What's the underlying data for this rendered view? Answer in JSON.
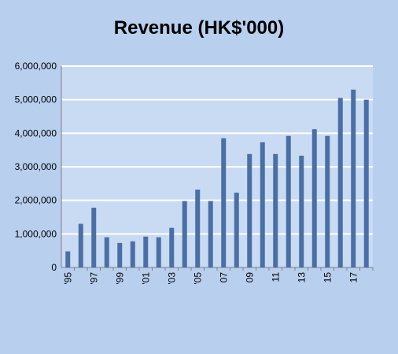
{
  "chart_data": {
    "type": "bar",
    "title": "Revenue (HK$'000)",
    "xlabel": "",
    "ylabel": "",
    "ylim": [
      0,
      6000000
    ],
    "yticks": [
      0,
      1000000,
      2000000,
      3000000,
      4000000,
      5000000,
      6000000
    ],
    "ytick_labels": [
      "0",
      "1,000,000",
      "2,000,000",
      "3,000,000",
      "4,000,000",
      "5,000,000",
      "6,000,000"
    ],
    "categories": [
      "1995",
      "1996",
      "1997",
      "1998",
      "1999",
      "2000",
      "2001",
      "2002",
      "2003",
      "2004",
      "2005",
      "2006",
      "2007",
      "2008",
      "2009",
      "2010",
      "2011",
      "2012",
      "2013",
      "2014",
      "2015",
      "2016",
      "2017",
      "2018"
    ],
    "xtick_labels": [
      "'95",
      "",
      "'97",
      "",
      "'99",
      "",
      "'01",
      "",
      "'03",
      "",
      "'05",
      "",
      "07",
      "",
      "09",
      "",
      "11",
      "",
      "13",
      "",
      "15",
      "",
      "17",
      ""
    ],
    "values": [
      480000,
      1300000,
      1780000,
      900000,
      730000,
      780000,
      920000,
      900000,
      1180000,
      1980000,
      2320000,
      1980000,
      3850000,
      2230000,
      3380000,
      3730000,
      3380000,
      3920000,
      3330000,
      4120000,
      3920000,
      5050000,
      5300000,
      5000000
    ],
    "grid": true,
    "colors": {
      "background": "#b8cfee",
      "plot_area": "#c9daf3",
      "bar": "#4a6fa5",
      "gridline": "#ffffff"
    }
  }
}
